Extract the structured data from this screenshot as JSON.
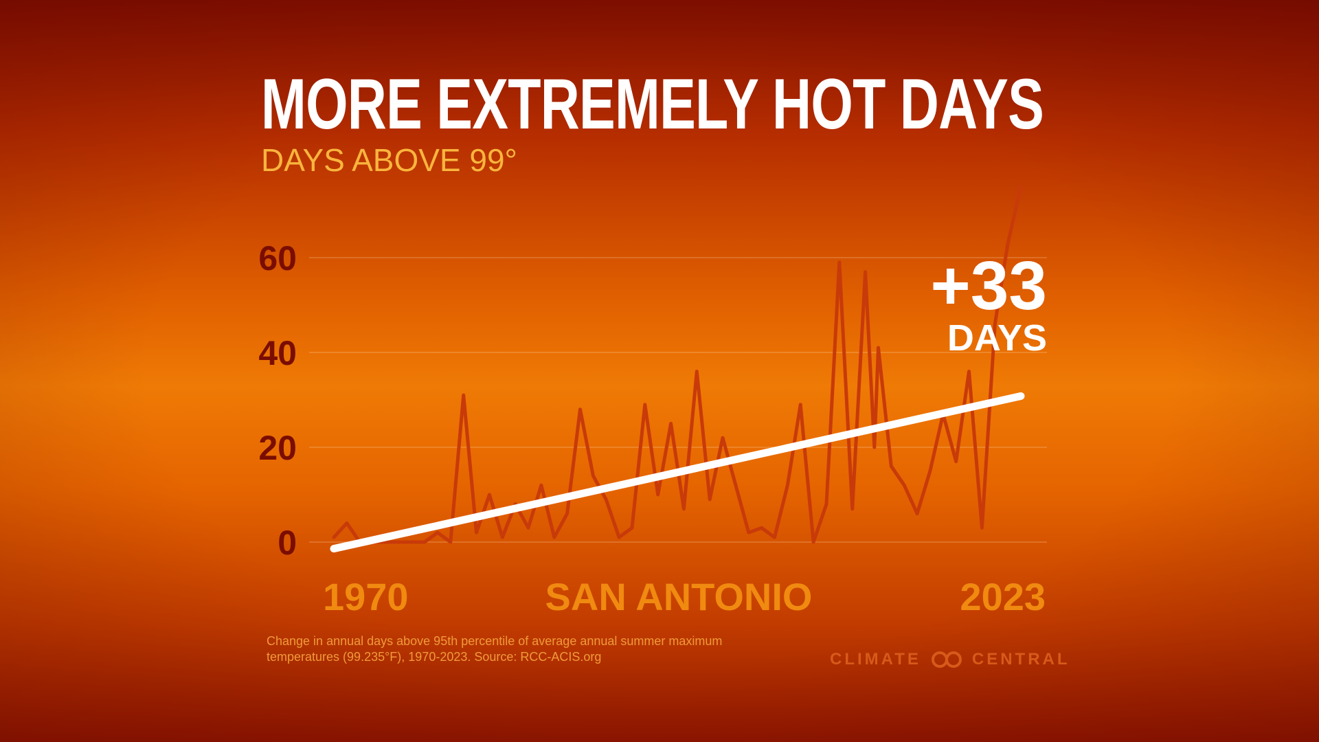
{
  "title": "MORE EXTREMELY HOT DAYS",
  "subtitle": "DAYS ABOVE 99°",
  "callout": {
    "value": "+33",
    "unit": "DAYS"
  },
  "location": "SAN ANTONIO",
  "note": "Change in annual days above 95th percentile of average annual summer maximum temperatures (99.235°F), 1970-2023. Source: RCC-ACIS.org",
  "logo": {
    "left": "CLIMATE",
    "right": "CENTRAL"
  },
  "colors": {
    "series_line": "#c83a0a",
    "trend_line": "#ffffff",
    "tick_labels": "#7a0d00",
    "year_labels": "#f08a10",
    "subtitle": "#f9b53d"
  },
  "chart_data": {
    "type": "line",
    "title": "MORE EXTREMELY HOT DAYS",
    "subtitle": "DAYS ABOVE 99°",
    "xlabel": "SAN ANTONIO",
    "ylabel": "",
    "xlim": [
      1970,
      2023
    ],
    "ylim": [
      0,
      60
    ],
    "yticks": [
      0,
      20,
      40,
      60
    ],
    "xtick_labels": [
      "1970",
      "2023"
    ],
    "grid": true,
    "legend": "none",
    "series": [
      {
        "x": [
          1970,
          1971,
          1972,
          1973,
          1974,
          1975,
          1976,
          1977,
          1978,
          1979,
          1980,
          1981,
          1982,
          1983,
          1984,
          1985,
          1986,
          1987,
          1988,
          1989,
          1990,
          1991,
          1992,
          1993,
          1994,
          1995,
          1996,
          1997,
          1998,
          1999,
          2000,
          2001,
          2002,
          2003,
          2004,
          2005,
          2006,
          2007,
          2008,
          2009,
          2010,
          2011,
          2011.7,
          2012,
          2013,
          2014,
          2015,
          2016,
          2017,
          2018,
          2019,
          2020,
          2021,
          2022,
          2023
        ],
        "values": [
          1,
          4,
          0,
          0,
          0,
          0,
          0,
          0,
          2,
          0,
          31,
          2,
          10,
          1,
          8,
          3,
          12,
          1,
          6,
          28,
          14,
          9,
          1,
          3,
          29,
          10,
          25,
          7,
          36,
          9,
          22,
          12,
          2,
          3,
          1,
          12,
          29,
          0,
          8,
          59,
          7,
          57,
          20,
          41,
          16,
          12,
          6,
          15,
          27,
          17,
          36,
          3,
          46,
          63,
          75
        ]
      }
    ],
    "trend": {
      "x": [
        1970,
        2023
      ],
      "values": [
        -1.4,
        30.8
      ],
      "change_days": 33
    }
  }
}
